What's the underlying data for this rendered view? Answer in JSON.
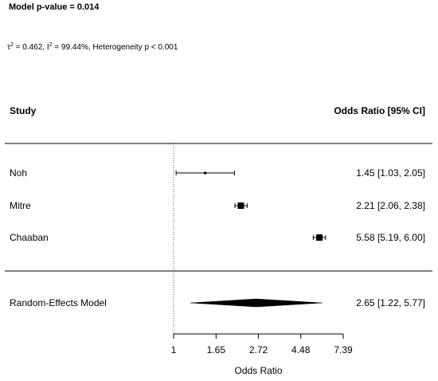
{
  "header": {
    "model_pvalue": "Model p-value = 0.014",
    "tau_symbol": "τ",
    "tau_value": " = 0.462, I",
    "i2_value": " = 99.44%, Heterogeneity p < 0.001",
    "superscript": "2"
  },
  "chart_data": {
    "type": "forest",
    "columns": {
      "study": "Study",
      "effect": "Odds Ratio [95% CI]"
    },
    "studies": [
      {
        "name": "Noh",
        "or": 1.45,
        "lower": 1.03,
        "upper": 2.05,
        "label": "1.45 [1.03, 2.05]",
        "weight": "small"
      },
      {
        "name": "Mitre",
        "or": 2.21,
        "lower": 2.06,
        "upper": 2.38,
        "label": "2.21 [2.06, 2.38]",
        "weight": "medium"
      },
      {
        "name": "Chaaban",
        "or": 5.58,
        "lower": 5.19,
        "upper": 6.0,
        "label": "5.58 [5.19, 6.00]",
        "weight": "medium"
      }
    ],
    "summary": {
      "name": "Random-Effects Model",
      "or": 2.65,
      "lower": 1.22,
      "upper": 5.77,
      "label": "2.65 [1.22, 5.77]"
    },
    "x_scale": "log",
    "xlim": [
      1,
      7.39
    ],
    "x_ticks": [
      1,
      1.65,
      2.72,
      4.48,
      7.39
    ],
    "x_tick_labels": [
      "1",
      "1.65",
      "2.72",
      "4.48",
      "7.39"
    ],
    "xlabel": "Odds Ratio",
    "reference_line": 1,
    "colors": {
      "ink": "#000000",
      "reference": "#555555"
    }
  }
}
